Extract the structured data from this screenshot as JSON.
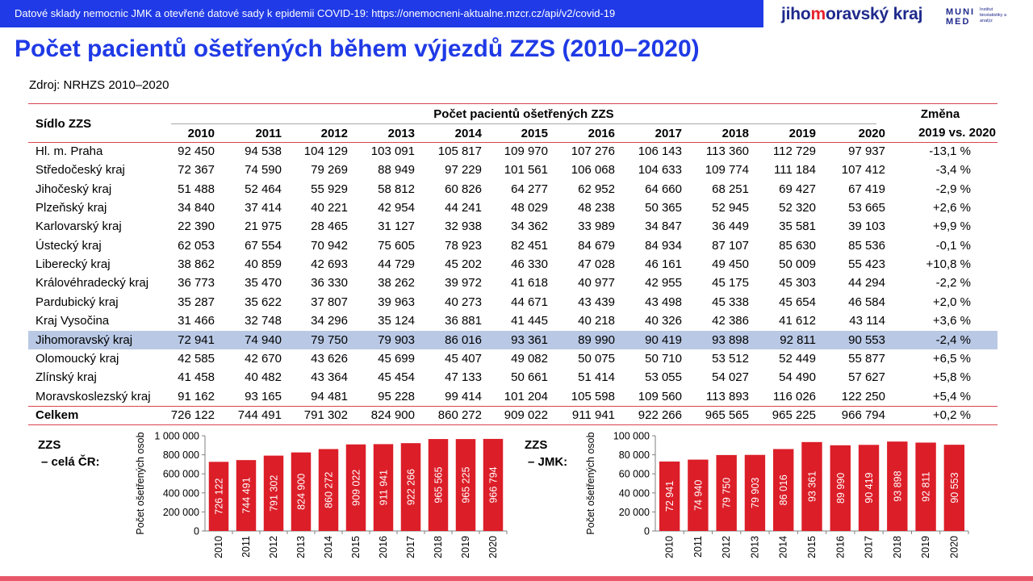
{
  "header": {
    "banner_text": "Datové sklady nemocnic JMK a otevřené datové sady k epidemii COVID-19: https://onemocneni-aktualne.mzcr.cz/api/v2/covid-19",
    "logo_jmk_pre": "jiho",
    "logo_jmk_mid": "m",
    "logo_jmk_post": "oravský kraj",
    "logo_muni_top": "MUNI",
    "logo_muni_bottom": "MED",
    "logo_muni_text": "Institut biostatistiky a analýz"
  },
  "slide": {
    "title": "Počet pacientů ošetřených během výjezdů ZZS (2010–2020)",
    "source": "Zdroj: NRHZS 2010–2020"
  },
  "colors": {
    "accent": "#1f3ae6",
    "bar": "#dc1e28",
    "highlight_row": "#b9c9e5",
    "rule": "#d9434c"
  },
  "table": {
    "col_header_region": "Sídlo ZZS",
    "group_header": "Počet pacientů ošetřených ZZS",
    "change_header_1": "Změna",
    "change_header_2": "2019 vs. 2020",
    "years": [
      "2010",
      "2011",
      "2012",
      "2013",
      "2014",
      "2015",
      "2016",
      "2017",
      "2018",
      "2019",
      "2020"
    ],
    "rows": [
      {
        "region": "Hl. m. Praha",
        "values": [
          "92 450",
          "94 538",
          "104 129",
          "103 091",
          "105 817",
          "109 970",
          "107 276",
          "106 143",
          "113 360",
          "112 729",
          "97 937"
        ],
        "change": "-13,1 %"
      },
      {
        "region": "Středočeský kraj",
        "values": [
          "72 367",
          "74 590",
          "79 269",
          "88 949",
          "97 229",
          "101 561",
          "106 068",
          "104 633",
          "109 774",
          "111 184",
          "107 412"
        ],
        "change": "-3,4 %"
      },
      {
        "region": "Jihočeský kraj",
        "values": [
          "51 488",
          "52 464",
          "55 929",
          "58 812",
          "60 826",
          "64 277",
          "62 952",
          "64 660",
          "68 251",
          "69 427",
          "67 419"
        ],
        "change": "-2,9 %"
      },
      {
        "region": "Plzeňský kraj",
        "values": [
          "34 840",
          "37 414",
          "40 221",
          "42 954",
          "44 241",
          "48 029",
          "48 238",
          "50 365",
          "52 945",
          "52 320",
          "53 665"
        ],
        "change": "+2,6 %"
      },
      {
        "region": "Karlovarský kraj",
        "values": [
          "22 390",
          "21 975",
          "28 465",
          "31 127",
          "32 938",
          "34 362",
          "33 989",
          "34 847",
          "36 449",
          "35 581",
          "39 103"
        ],
        "change": "+9,9 %"
      },
      {
        "region": "Ústecký kraj",
        "values": [
          "62 053",
          "67 554",
          "70 942",
          "75 605",
          "78 923",
          "82 451",
          "84 679",
          "84 934",
          "87 107",
          "85 630",
          "85 536"
        ],
        "change": "-0,1 %"
      },
      {
        "region": "Liberecký kraj",
        "values": [
          "38 862",
          "40 859",
          "42 693",
          "44 729",
          "45 202",
          "46 330",
          "47 028",
          "46 161",
          "49 450",
          "50 009",
          "55 423"
        ],
        "change": "+10,8 %"
      },
      {
        "region": "Královéhradecký kraj",
        "values": [
          "36 773",
          "35 470",
          "36 330",
          "38 262",
          "39 972",
          "41 618",
          "40 977",
          "42 955",
          "45 175",
          "45 303",
          "44 294"
        ],
        "change": "-2,2 %"
      },
      {
        "region": "Pardubický kraj",
        "values": [
          "35 287",
          "35 622",
          "37 807",
          "39 963",
          "40 273",
          "44 671",
          "43 439",
          "43 498",
          "45 338",
          "45 654",
          "46 584"
        ],
        "change": "+2,0 %"
      },
      {
        "region": "Kraj Vysočina",
        "values": [
          "31 466",
          "32 748",
          "34 296",
          "35 124",
          "36 881",
          "41 445",
          "40 218",
          "40 326",
          "42 386",
          "41 612",
          "43 114"
        ],
        "change": "+3,6 %"
      },
      {
        "region": "Jihomoravský kraj",
        "values": [
          "72 941",
          "74 940",
          "79 750",
          "79 903",
          "86 016",
          "93 361",
          "89 990",
          "90 419",
          "93 898",
          "92 811",
          "90 553"
        ],
        "change": "-2,4 %",
        "highlight": true
      },
      {
        "region": "Olomoucký kraj",
        "values": [
          "42 585",
          "42 670",
          "43 626",
          "45 699",
          "45 407",
          "49 082",
          "50 075",
          "50 710",
          "53 512",
          "52 449",
          "55 877"
        ],
        "change": "+6,5 %"
      },
      {
        "region": "Zlínský kraj",
        "values": [
          "41 458",
          "40 482",
          "43 364",
          "45 454",
          "47 133",
          "50 661",
          "51 414",
          "53 055",
          "54 027",
          "54 490",
          "57 627"
        ],
        "change": "+5,8 %"
      },
      {
        "region": "Moravskoslezský kraj",
        "values": [
          "91 162",
          "93 165",
          "94 481",
          "95 228",
          "99 414",
          "101 204",
          "105 598",
          "109 560",
          "113 893",
          "116 026",
          "122 250"
        ],
        "change": "+5,4 %"
      }
    ],
    "total": {
      "region": "Celkem",
      "values": [
        "726 122",
        "744 491",
        "791 302",
        "824 900",
        "860 272",
        "909 022",
        "911 941",
        "922 266",
        "965 565",
        "965 225",
        "966 794"
      ],
      "change": "+0,2 %"
    }
  },
  "charts": {
    "left_label_1": "ZZS",
    "left_label_2": "– celá ČR:",
    "right_label_1": "ZZS",
    "right_label_2": "– JMK:"
  },
  "chart_data": [
    {
      "type": "bar",
      "categories": [
        "2010",
        "2011",
        "2012",
        "2013",
        "2014",
        "2015",
        "2016",
        "2017",
        "2018",
        "2019",
        "2020"
      ],
      "values": [
        726122,
        744491,
        791302,
        824900,
        860272,
        909022,
        911941,
        922266,
        965565,
        965225,
        966794
      ],
      "data_labels": [
        "726 122",
        "744 491",
        "791 302",
        "824 900",
        "860 272",
        "909 022",
        "911 941",
        "922 266",
        "965 565",
        "965 225",
        "966 794"
      ],
      "ylabel": "Počet ošetřených osob",
      "ylim": [
        0,
        1000000
      ],
      "yticks": [
        0,
        200000,
        400000,
        600000,
        800000,
        1000000
      ],
      "ytick_labels": [
        "0",
        "200 000",
        "400 000",
        "600 000",
        "800 000",
        "1 000 000"
      ],
      "grid": false
    },
    {
      "type": "bar",
      "categories": [
        "2010",
        "2011",
        "2012",
        "2013",
        "2014",
        "2015",
        "2016",
        "2017",
        "2018",
        "2019",
        "2020"
      ],
      "values": [
        72941,
        74940,
        79750,
        79903,
        86016,
        93361,
        89990,
        90419,
        93898,
        92811,
        90553
      ],
      "data_labels": [
        "72 941",
        "74 940",
        "79 750",
        "79 903",
        "86 016",
        "93 361",
        "89 990",
        "90 419",
        "93 898",
        "92 811",
        "90 553"
      ],
      "ylabel": "Počet ošetřených osob",
      "ylim": [
        0,
        100000
      ],
      "yticks": [
        0,
        20000,
        40000,
        60000,
        80000,
        100000
      ],
      "ytick_labels": [
        "0",
        "20 000",
        "40 000",
        "60 000",
        "80 000",
        "100 000"
      ],
      "grid": false
    }
  ]
}
